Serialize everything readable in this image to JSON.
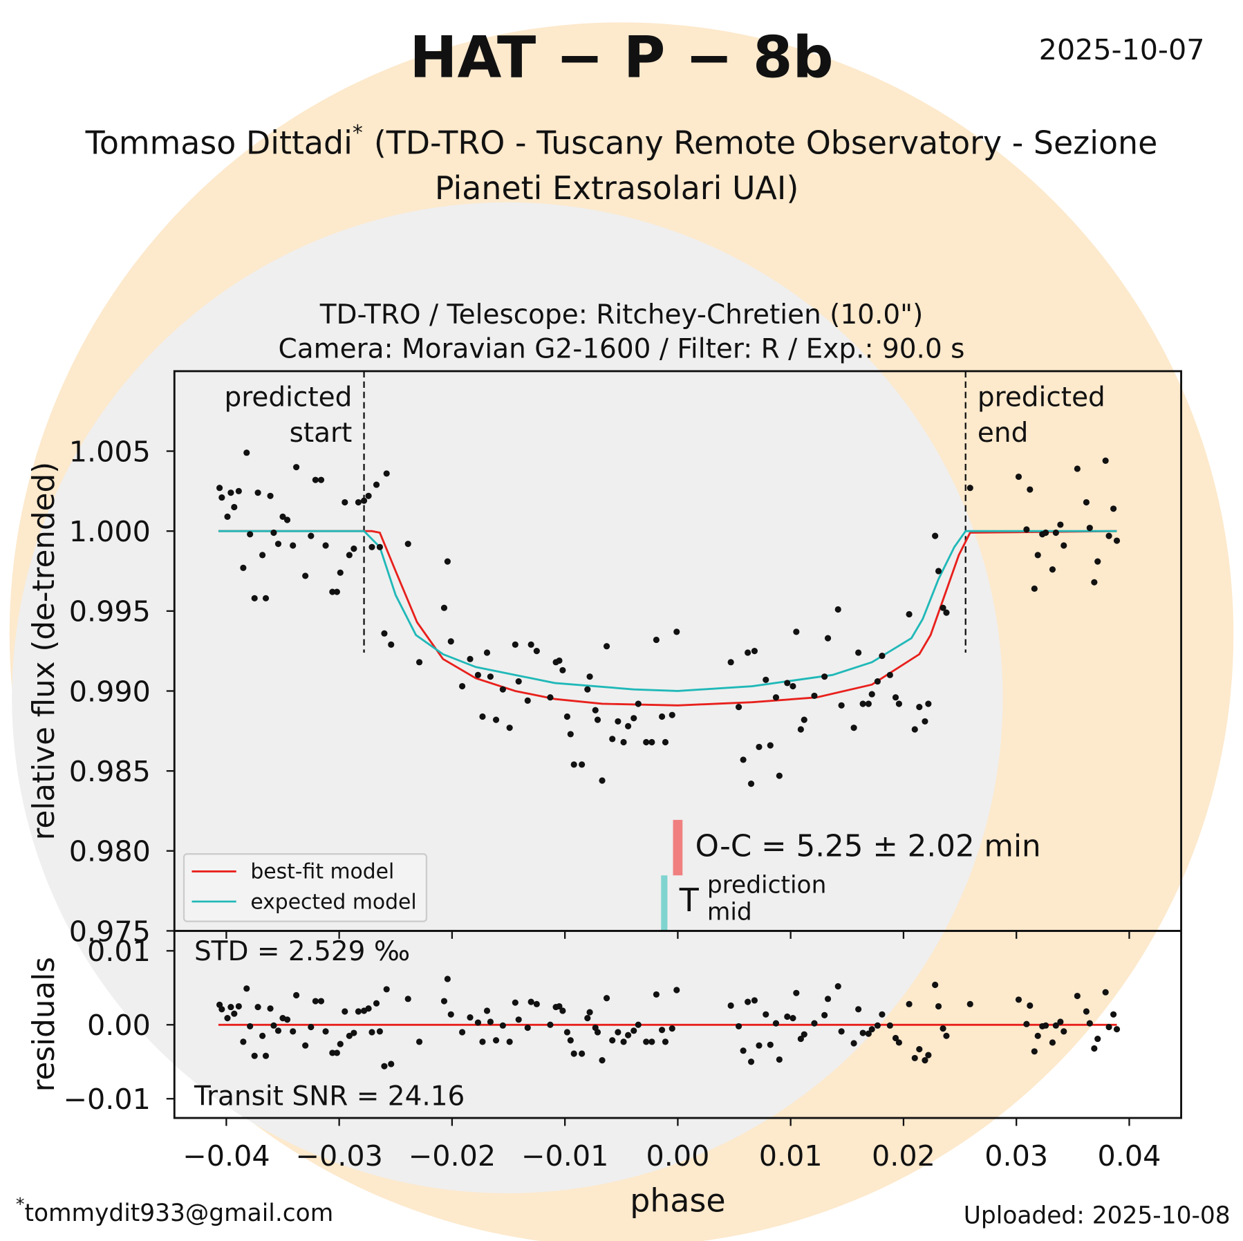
{
  "title": "HAT − P − 8b",
  "date": "2025-10-07",
  "author": {
    "name": "Tommaso Dittadi",
    "mark": "*",
    "affiliation_lines": [
      "(TD-TRO - Tuscany Remote Observatory - Sezione",
      "Pianeti Extrasolari UAI)"
    ]
  },
  "footer": {
    "mark": "*",
    "email": "tommydit933@gmail.com",
    "uploaded": "Uploaded: 2025-10-08"
  },
  "chart_data": [
    {
      "type": "scatter",
      "title_lines": [
        "TD-TRO / Telescope: Ritchey-Chretien (10.0\")",
        "Camera: Moravian G2-1600 / Filter: R / Exp.: 90.0 s"
      ],
      "ylabel": "relative flux (de-trended)",
      "xlim": [
        -0.0446,
        0.0446
      ],
      "ylim": [
        0.975,
        1.01
      ],
      "yticks": [
        {
          "value": 0.975,
          "label": "0.975"
        },
        {
          "value": 0.98,
          "label": "0.980"
        },
        {
          "value": 0.985,
          "label": "0.985"
        },
        {
          "value": 0.99,
          "label": "0.990"
        },
        {
          "value": 0.995,
          "label": "0.995"
        },
        {
          "value": 1.0,
          "label": "1.000"
        },
        {
          "value": 1.005,
          "label": "1.005"
        }
      ],
      "color": "#111111",
      "x": [
        -0.0406,
        -0.0404,
        -0.0399,
        -0.0396,
        -0.0393,
        -0.0389,
        -0.0385,
        -0.0382,
        -0.0379,
        -0.0375,
        -0.0372,
        -0.0368,
        -0.0365,
        -0.0361,
        -0.0358,
        -0.0354,
        -0.035,
        -0.0346,
        -0.0341,
        -0.0338,
        -0.033,
        -0.0325,
        -0.0321,
        -0.0316,
        -0.0312,
        -0.0306,
        -0.0302,
        -0.0299,
        -0.0295,
        -0.0291,
        -0.0287,
        -0.0283,
        -0.0278,
        -0.0274,
        -0.0271,
        -0.0267,
        -0.0264,
        -0.026,
        -0.0258,
        -0.0254,
        -0.0239,
        -0.0229,
        -0.0207,
        -0.0204,
        -0.0201,
        -0.0191,
        -0.0184,
        -0.0177,
        -0.0173,
        -0.0169,
        -0.0166,
        -0.0161,
        -0.0155,
        -0.0149,
        -0.0144,
        -0.0141,
        -0.0133,
        -0.013,
        -0.0125,
        -0.0113,
        -0.0108,
        -0.0105,
        -0.0102,
        -0.0098,
        -0.0095,
        -0.0092,
        -0.0085,
        -0.008,
        -0.0078,
        -0.0073,
        -0.0071,
        -0.0067,
        -0.0063,
        -0.0058,
        -0.0053,
        -0.0048,
        -0.0044,
        -0.0039,
        -0.0035,
        -0.0028,
        -0.0023,
        -0.0019,
        -0.0014,
        -0.0011,
        -0.0005,
        -0.0001,
        0.0047,
        0.0054,
        0.0058,
        0.0062,
        0.0065,
        0.0068,
        0.0072,
        0.0078,
        0.0082,
        0.0087,
        0.009,
        0.0097,
        0.0102,
        0.0105,
        0.0109,
        0.0112,
        0.0121,
        0.013,
        0.0133,
        0.0142,
        0.0145,
        0.0156,
        0.016,
        0.0164,
        0.0169,
        0.0172,
        0.0177,
        0.0181,
        0.0188,
        0.0193,
        0.0196,
        0.0205,
        0.021,
        0.0214,
        0.0219,
        0.0222,
        0.0228,
        0.0231,
        0.0235,
        0.0238,
        0.0259,
        0.0302,
        0.0309,
        0.0312,
        0.0316,
        0.0319,
        0.0323,
        0.0326,
        0.0332,
        0.0335,
        0.0339,
        0.0342,
        0.0354,
        0.0362,
        0.0365,
        0.0369,
        0.0372,
        0.0379,
        0.0382,
        0.0386,
        0.0389
      ],
      "values": [
        1.0027,
        1.0021,
        1.0009,
        1.0024,
        1.0015,
        1.0025,
        0.9977,
        1.0049,
        0.9998,
        0.9958,
        1.0024,
        0.9985,
        0.9958,
        1.0022,
        0.9999,
        0.9992,
        1.0009,
        1.0007,
        0.9991,
        1.004,
        0.9972,
        0.9997,
        1.0032,
        1.0032,
        0.9991,
        0.9962,
        0.9962,
        0.9974,
        1.0018,
        0.9985,
        0.9989,
        1.0018,
        1.0019,
        1.0022,
        0.999,
        1.0029,
        0.999,
        0.9936,
        1.0036,
        0.9929,
        0.9992,
        0.9918,
        0.9952,
        0.9981,
        0.9931,
        0.9903,
        0.992,
        0.991,
        0.9884,
        0.9924,
        0.9909,
        0.9882,
        0.9901,
        0.9877,
        0.9929,
        0.9906,
        0.9894,
        0.9929,
        0.9925,
        0.9896,
        0.9918,
        0.9919,
        0.9913,
        0.9884,
        0.9873,
        0.9854,
        0.9854,
        0.9901,
        0.9909,
        0.9888,
        0.9882,
        0.9844,
        0.9928,
        0.987,
        0.9881,
        0.9868,
        0.9878,
        0.9883,
        0.9892,
        0.9868,
        0.9868,
        0.9932,
        0.9884,
        0.9868,
        0.9885,
        0.9937,
        0.9918,
        0.989,
        0.9857,
        0.9924,
        0.9842,
        0.9925,
        0.9865,
        0.9907,
        0.9866,
        0.9896,
        0.9847,
        0.9905,
        0.9903,
        0.9937,
        0.9876,
        0.9882,
        0.9897,
        0.9909,
        0.9933,
        0.9951,
        0.9891,
        0.9877,
        0.9924,
        0.9892,
        0.9892,
        0.9898,
        0.9906,
        0.9922,
        0.991,
        0.9896,
        0.9892,
        0.9948,
        0.9876,
        0.989,
        0.9881,
        0.9892,
        0.9997,
        0.9975,
        0.9952,
        0.9949,
        1.0027,
        1.0034,
        1.0001,
        1.0026,
        0.9964,
        0.9985,
        0.9998,
        0.9999,
        0.9976,
        0.9999,
        1.0004,
        0.9991,
        1.0039,
        1.0018,
        1.0002,
        0.9968,
        0.9981,
        1.0044,
        0.9997,
        1.0014,
        0.9994
      ],
      "lines": [
        {
          "name": "best-fit model",
          "color": "#e8201c",
          "x": [
            -0.0407,
            -0.0271,
            -0.0264,
            -0.025,
            -0.0231,
            -0.0208,
            -0.0179,
            -0.0144,
            -0.0109,
            -0.0067,
            0.0,
            0.0066,
            0.0123,
            0.0172,
            0.0214,
            0.0224,
            0.0235,
            0.0249,
            0.0259,
            0.0389
          ],
          "values": [
            1.0,
            1.0,
            0.9999,
            0.9975,
            0.9943,
            0.992,
            0.9908,
            0.99,
            0.9895,
            0.9892,
            0.9891,
            0.9893,
            0.9896,
            0.9904,
            0.9923,
            0.9935,
            0.9957,
            0.9985,
            0.9999,
            1.0
          ]
        },
        {
          "name": "expected model",
          "color": "#20b8b8",
          "x": [
            -0.0407,
            -0.0278,
            -0.0264,
            -0.025,
            -0.0232,
            -0.0208,
            -0.0179,
            -0.0109,
            -0.0039,
            0.0,
            0.0066,
            0.0137,
            0.0172,
            0.0207,
            0.0217,
            0.0231,
            0.0245,
            0.0255,
            0.0389
          ],
          "values": [
            1.0,
            1.0,
            0.999,
            0.996,
            0.9935,
            0.9923,
            0.9915,
            0.9905,
            0.9901,
            0.99,
            0.9903,
            0.991,
            0.9918,
            0.9933,
            0.9945,
            0.997,
            0.999,
            1.0,
            1.0
          ]
        }
      ],
      "legend": "lower left",
      "events": [
        {
          "label_lines": [
            "predicted",
            "start"
          ],
          "x": -0.0278
        },
        {
          "label_lines": [
            "predicted",
            "end"
          ],
          "x": 0.0255
        }
      ],
      "oc": {
        "text": "O-C = 5.25 ± 2.02 min",
        "fit_mid": 0.0,
        "fit_color": "#f08080",
        "predicted_mid": -0.0012,
        "predicted_color": "#80d4d0",
        "predicted_symbol": "T",
        "predicted_label_lines": [
          "prediction",
          "mid"
        ]
      }
    },
    {
      "type": "scatter",
      "ylabel": "residuals",
      "xlabel": "phase",
      "xlim": [
        -0.0446,
        0.0446
      ],
      "ylim": [
        -0.0126,
        0.0127
      ],
      "xticks": [
        {
          "value": -0.04,
          "label": "−0.04"
        },
        {
          "value": -0.03,
          "label": "−0.03"
        },
        {
          "value": -0.02,
          "label": "−0.02"
        },
        {
          "value": -0.01,
          "label": "−0.01"
        },
        {
          "value": 0,
          "label": "0.00"
        },
        {
          "value": 0.01,
          "label": "0.01"
        },
        {
          "value": 0.02,
          "label": "0.02"
        },
        {
          "value": 0.03,
          "label": "0.03"
        },
        {
          "value": 0.04,
          "label": "0.04"
        }
      ],
      "yticks": [
        {
          "value": -0.01,
          "label": "−0.01"
        },
        {
          "value": 0,
          "label": "0.00"
        },
        0.01
      ],
      "color": "#111111",
      "zero_line_color": "#e8201c",
      "annotations": [
        "STD = 2.529 ‰",
        "Transit SNR = 24.16"
      ],
      "values": [
        0.0027,
        0.0021,
        0.0009,
        0.0024,
        0.0015,
        0.0025,
        -0.0023,
        0.0049,
        -0.0002,
        -0.0042,
        0.0024,
        -0.0015,
        -0.0042,
        0.0022,
        -0.0001,
        -0.0008,
        0.0009,
        0.0007,
        -0.0009,
        0.004,
        -0.0028,
        -0.0003,
        0.0032,
        0.0032,
        -0.0009,
        -0.0038,
        -0.0038,
        -0.0026,
        0.0018,
        -0.0015,
        -0.0011,
        0.0018,
        0.0019,
        0.0022,
        -0.001,
        0.0029,
        -0.0009,
        -0.0056,
        0.0048,
        -0.0053,
        0.0035,
        -0.0023,
        0.0032,
        0.0062,
        0.0014,
        -0.001,
        0.001,
        0.0003,
        -0.0023,
        0.0019,
        0.0004,
        -0.0021,
        -0.0001,
        -0.0023,
        0.003,
        0.0007,
        -0.0004,
        0.0031,
        0.0028,
        0,
        0.0024,
        0.0025,
        0.0019,
        -0.001,
        -0.0021,
        -0.0039,
        -0.0039,
        0.0009,
        0.0017,
        -0.0004,
        -0.001,
        -0.0048,
        0.0036,
        -0.0021,
        -0.001,
        -0.0023,
        -0.0014,
        -0.0008,
        0,
        -0.0023,
        -0.0023,
        0.0041,
        -0.0007,
        -0.0023,
        -0.0005,
        0.0047,
        0.0026,
        -0.0002,
        -0.0035,
        0.0031,
        -0.005,
        0.0033,
        -0.0028,
        0.0014,
        -0.0027,
        0.0002,
        -0.0047,
        0.0011,
        0.0009,
        0.0043,
        -0.0019,
        -0.0013,
        0.0002,
        0.0013,
        0.0035,
        0.0052,
        -0.0009,
        -0.0025,
        0.0021,
        -0.0011,
        -0.0012,
        -0.0006,
        -0.0001,
        0.0014,
        -0.0001,
        -0.0018,
        -0.0024,
        0.0028,
        -0.0045,
        -0.0033,
        -0.0048,
        -0.0041,
        0.0054,
        0.0025,
        -0.0005,
        -0.0015,
        0.0028,
        0.0034,
        0.0001,
        0.0026,
        -0.0036,
        -0.0015,
        -0.0002,
        -0.0001,
        -0.0024,
        -0.0001,
        0.0004,
        -0.0009,
        0.0039,
        0.0018,
        0.0002,
        -0.0032,
        -0.0019,
        0.0044,
        -0.0003,
        0.0014,
        -0.0006
      ]
    }
  ]
}
